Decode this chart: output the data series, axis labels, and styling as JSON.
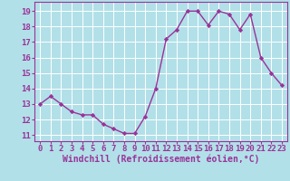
{
  "x": [
    0,
    1,
    2,
    3,
    4,
    5,
    6,
    7,
    8,
    9,
    10,
    11,
    12,
    13,
    14,
    15,
    16,
    17,
    18,
    19,
    20,
    21,
    22,
    23
  ],
  "y": [
    13.0,
    13.5,
    13.0,
    12.5,
    12.3,
    12.3,
    11.7,
    11.4,
    11.1,
    11.1,
    12.2,
    14.0,
    17.2,
    17.8,
    19.0,
    19.0,
    18.1,
    19.0,
    18.8,
    17.8,
    18.8,
    16.0,
    15.0,
    14.2
  ],
  "line_color": "#993399",
  "marker": "D",
  "marker_size": 2.2,
  "background_color": "#b2e0e8",
  "grid_color": "#ffffff",
  "xlabel": "Windchill (Refroidissement éolien,°C)",
  "xlabel_fontsize": 7,
  "ylabel": "",
  "ylim": [
    10.6,
    19.6
  ],
  "xlim": [
    -0.5,
    23.5
  ],
  "yticks": [
    11,
    12,
    13,
    14,
    15,
    16,
    17,
    18,
    19
  ],
  "xticks": [
    0,
    1,
    2,
    3,
    4,
    5,
    6,
    7,
    8,
    9,
    10,
    11,
    12,
    13,
    14,
    15,
    16,
    17,
    18,
    19,
    20,
    21,
    22,
    23
  ],
  "tick_fontsize": 6.5,
  "line_width": 1.0,
  "spine_color": "#993399",
  "tick_color": "#993399",
  "label_color": "#993399"
}
